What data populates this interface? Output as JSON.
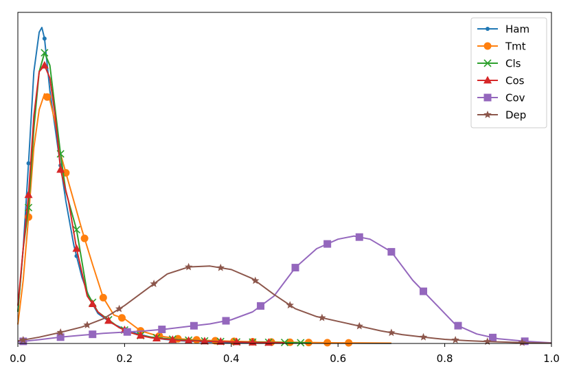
{
  "chart_data": {
    "type": "line",
    "title": "",
    "xlabel": "",
    "ylabel": "",
    "xlim": [
      0,
      1
    ],
    "ylim": [
      0,
      1
    ],
    "xticks": [
      0,
      0.2,
      0.4,
      0.6,
      0.8,
      1.0
    ],
    "xtick_labels": [
      "0.0",
      "0.2",
      "0.4",
      "0.6",
      "0.8",
      "1.0"
    ],
    "yticks_shown": false,
    "grid": false,
    "legend_position": "top-right",
    "series": [
      {
        "name": "Ham",
        "color": "#1f77b4",
        "marker": "point",
        "x": [
          0,
          0.01,
          0.02,
          0.03,
          0.04,
          0.045,
          0.05,
          0.06,
          0.075,
          0.09,
          0.105,
          0.12,
          0.135,
          0.15,
          0.175,
          0.2,
          0.225,
          0.25,
          0.275,
          0.3,
          0.35,
          0.4,
          0.45,
          0.5,
          0.55,
          0.6,
          0.65,
          0.7
        ],
        "y": [
          0.1,
          0.3,
          0.57,
          0.86,
          0.985,
          1.0,
          0.965,
          0.8,
          0.62,
          0.45,
          0.31,
          0.21,
          0.14,
          0.095,
          0.065,
          0.045,
          0.03,
          0.02,
          0.013,
          0.009,
          0.005,
          0.003,
          0.002,
          0.0015,
          0.001,
          0.0008,
          0.0005,
          0.0003
        ],
        "marker_x": [
          0.02,
          0.05,
          0.08,
          0.11,
          0.14,
          0.17,
          0.2,
          0.23,
          0.26,
          0.29
        ]
      },
      {
        "name": "Tmt",
        "color": "#ff7f0e",
        "marker": "circle",
        "x": [
          0,
          0.01,
          0.02,
          0.03,
          0.04,
          0.05,
          0.06,
          0.07,
          0.08,
          0.1,
          0.12,
          0.14,
          0.16,
          0.18,
          0.2,
          0.23,
          0.26,
          0.3,
          0.35,
          0.4,
          0.45,
          0.5,
          0.55,
          0.6,
          0.65,
          0.7
        ],
        "y": [
          0.06,
          0.2,
          0.4,
          0.62,
          0.74,
          0.79,
          0.77,
          0.7,
          0.6,
          0.48,
          0.36,
          0.25,
          0.145,
          0.09,
          0.078,
          0.04,
          0.025,
          0.015,
          0.01,
          0.007,
          0.005,
          0.004,
          0.003,
          0.002,
          0.0015,
          0.001
        ],
        "marker_x": [
          0.02,
          0.055,
          0.09,
          0.125,
          0.16,
          0.195,
          0.23,
          0.265,
          0.3,
          0.335,
          0.37,
          0.405,
          0.44,
          0.475,
          0.51,
          0.545,
          0.58,
          0.62
        ]
      },
      {
        "name": "Cls",
        "color": "#2ca02c",
        "marker": "x",
        "x": [
          0,
          0.01,
          0.02,
          0.03,
          0.04,
          0.05,
          0.06,
          0.07,
          0.08,
          0.09,
          0.11,
          0.13,
          0.15,
          0.17,
          0.19,
          0.21,
          0.23,
          0.25,
          0.3,
          0.35,
          0.4,
          0.45,
          0.5,
          0.55
        ],
        "y": [
          0.1,
          0.3,
          0.43,
          0.68,
          0.86,
          0.92,
          0.88,
          0.74,
          0.6,
          0.48,
          0.36,
          0.16,
          0.1,
          0.075,
          0.05,
          0.035,
          0.025,
          0.02,
          0.012,
          0.008,
          0.005,
          0.004,
          0.003,
          0.002
        ],
        "marker_x": [
          0.02,
          0.05,
          0.08,
          0.11,
          0.14,
          0.17,
          0.2,
          0.23,
          0.26,
          0.29,
          0.32,
          0.35,
          0.38,
          0.41,
          0.44,
          0.47,
          0.5,
          0.53
        ]
      },
      {
        "name": "Cos",
        "color": "#d62728",
        "marker": "triangle",
        "x": [
          0,
          0.01,
          0.02,
          0.03,
          0.04,
          0.05,
          0.06,
          0.07,
          0.08,
          0.095,
          0.11,
          0.13,
          0.15,
          0.17,
          0.19,
          0.21,
          0.23,
          0.25,
          0.3,
          0.35,
          0.4,
          0.45,
          0.5
        ],
        "y": [
          0.12,
          0.3,
          0.47,
          0.72,
          0.86,
          0.88,
          0.84,
          0.72,
          0.55,
          0.45,
          0.3,
          0.15,
          0.1,
          0.072,
          0.05,
          0.035,
          0.025,
          0.018,
          0.01,
          0.007,
          0.005,
          0.003,
          0.002
        ],
        "marker_x": [
          0.02,
          0.05,
          0.08,
          0.11,
          0.14,
          0.17,
          0.2,
          0.23,
          0.26,
          0.29,
          0.32,
          0.35,
          0.38,
          0.41,
          0.44,
          0.47
        ]
      },
      {
        "name": "Cov",
        "color": "#9467bd",
        "marker": "square",
        "x": [
          0,
          0.04,
          0.08,
          0.12,
          0.16,
          0.2,
          0.24,
          0.28,
          0.32,
          0.36,
          0.4,
          0.44,
          0.48,
          0.52,
          0.56,
          0.6,
          0.63,
          0.66,
          0.7,
          0.74,
          0.78,
          0.82,
          0.86,
          0.9,
          0.95,
          1.0
        ],
        "y": [
          0.005,
          0.012,
          0.02,
          0.026,
          0.032,
          0.036,
          0.04,
          0.046,
          0.054,
          0.062,
          0.075,
          0.1,
          0.15,
          0.24,
          0.3,
          0.33,
          0.34,
          0.33,
          0.29,
          0.2,
          0.13,
          0.06,
          0.03,
          0.015,
          0.007,
          0.002
        ],
        "marker_x": [
          0.01,
          0.08,
          0.14,
          0.205,
          0.27,
          0.33,
          0.39,
          0.455,
          0.52,
          0.58,
          0.64,
          0.7,
          0.76,
          0.825,
          0.89,
          0.95
        ]
      },
      {
        "name": "Dep",
        "color": "#8c564b",
        "marker": "star",
        "x": [
          0,
          0.04,
          0.08,
          0.12,
          0.16,
          0.2,
          0.24,
          0.28,
          0.32,
          0.36,
          0.4,
          0.44,
          0.48,
          0.52,
          0.56,
          0.6,
          0.64,
          0.68,
          0.72,
          0.76,
          0.8,
          0.84,
          0.88,
          0.92,
          0.96,
          1.0
        ],
        "y": [
          0.008,
          0.02,
          0.035,
          0.052,
          0.078,
          0.12,
          0.17,
          0.22,
          0.242,
          0.245,
          0.234,
          0.205,
          0.155,
          0.11,
          0.085,
          0.07,
          0.055,
          0.04,
          0.028,
          0.02,
          0.013,
          0.009,
          0.006,
          0.004,
          0.002,
          0.001
        ],
        "marker_x": [
          0.01,
          0.08,
          0.13,
          0.19,
          0.255,
          0.32,
          0.38,
          0.445,
          0.51,
          0.57,
          0.64,
          0.7,
          0.76,
          0.82,
          0.88,
          0.945
        ]
      }
    ]
  }
}
